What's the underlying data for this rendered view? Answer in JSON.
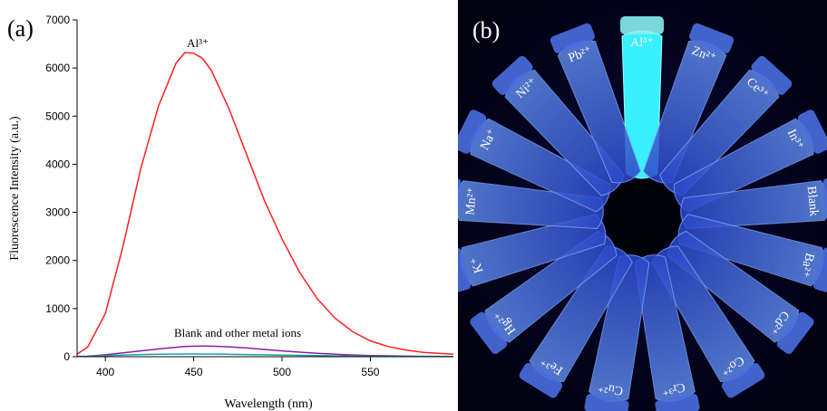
{
  "panel_a_label": "(a)",
  "chart_data": {
    "type": "line",
    "x_label": "Wavelength (nm)",
    "y_label": "Fluorescence Intensity (a.u.)",
    "annotations": [
      "Al³⁺",
      "Blank and other metal ions"
    ],
    "x": [
      384,
      390,
      400,
      410,
      420,
      430,
      440,
      445,
      450,
      455,
      460,
      470,
      480,
      490,
      500,
      510,
      520,
      530,
      540,
      550,
      560,
      570,
      580,
      597
    ],
    "series": [
      {
        "color": "#ff2020",
        "values": [
          50,
          200,
          900,
          2300,
          3900,
          5200,
          6100,
          6320,
          6310,
          6200,
          5950,
          5150,
          4200,
          3250,
          2450,
          1750,
          1200,
          800,
          520,
          330,
          210,
          140,
          90,
          50
        ]
      },
      {
        "color": "#8a1fa0",
        "values": [
          5,
          10,
          40,
          80,
          120,
          160,
          195,
          210,
          218,
          220,
          218,
          205,
          180,
          150,
          120,
          95,
          70,
          50,
          35,
          25,
          18,
          12,
          8,
          5
        ]
      },
      {
        "color": "#1aa0b0",
        "values": [
          3,
          6,
          20,
          35,
          45,
          52,
          55,
          56,
          56,
          55,
          54,
          50,
          45,
          40,
          34,
          28,
          22,
          17,
          13,
          10,
          8,
          6,
          5,
          4
        ]
      }
    ],
    "xlim": [
      384,
      597
    ],
    "ylim": [
      0,
      7000
    ],
    "xticks": [
      400,
      450,
      500,
      550
    ],
    "yticks": [
      0,
      1000,
      2000,
      3000,
      4000,
      5000,
      6000,
      7000
    ]
  },
  "panel_b": {
    "label": "(b)",
    "tube_labels": [
      "Al³⁺",
      "Zn²⁺",
      "Ce³⁺",
      "In³⁺",
      "Blank",
      "Ba²⁺",
      "Cd²⁺",
      "Co²⁺",
      "Cr³⁺",
      "Cu²⁺",
      "Fe³⁺",
      "Hg²⁺",
      "K⁺",
      "Mn²⁺",
      "Na⁺",
      "Ni²⁺",
      "Pb²⁺"
    ]
  }
}
